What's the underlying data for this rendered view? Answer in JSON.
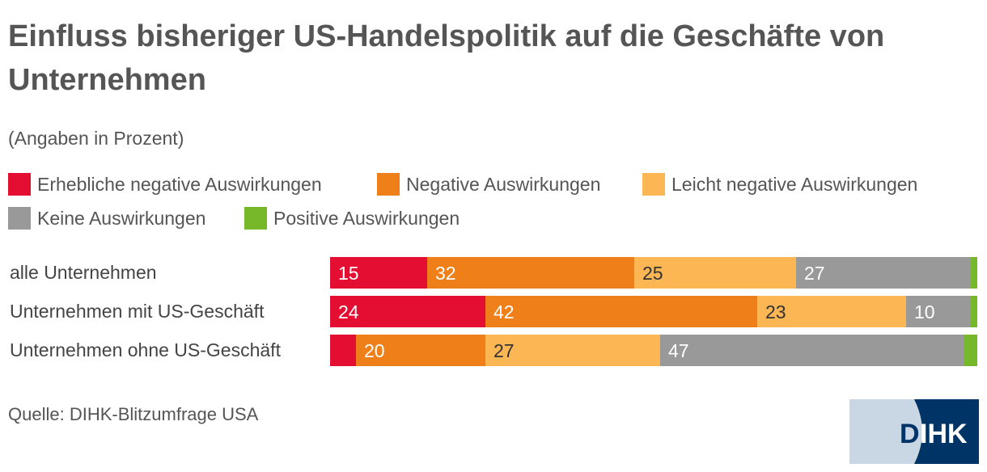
{
  "title": "Einfluss bisheriger US-Handelspolitik auf die Geschäfte von Unternehmen",
  "subtitle": "(Angaben in Prozent)",
  "source": "Quelle: DIHK-Blitzumfrage USA",
  "logo_text": "DIHK",
  "chart_data": {
    "type": "bar",
    "orientation": "horizontal-stacked",
    "title": "Einfluss bisheriger US-Handelspolitik auf die Geschäfte von Unternehmen",
    "subtitle": "(Angaben in Prozent)",
    "categories": [
      "alle Unternehmen",
      "Unternehmen mit US-Geschäft",
      "Unternehmen ohne US-Geschäft"
    ],
    "series": [
      {
        "name": "Erhebliche negative Auswirkungen",
        "color": "#e30e31",
        "values": [
          15,
          24,
          4
        ],
        "labels": [
          "15",
          "24",
          ""
        ]
      },
      {
        "name": "Negative Auswirkungen",
        "color": "#ef8019",
        "values": [
          32,
          42,
          20
        ],
        "labels": [
          "32",
          "42",
          "20"
        ]
      },
      {
        "name": "Leicht negative Auswirkungen",
        "color": "#fdb654",
        "values": [
          25,
          23,
          27
        ],
        "labels": [
          "25",
          "23",
          "27"
        ]
      },
      {
        "name": "Keine Auswirkungen",
        "color": "#999999",
        "values": [
          27,
          10,
          47
        ],
        "labels": [
          "27",
          "10",
          "47"
        ]
      },
      {
        "name": "Positive Auswirkungen",
        "color": "#76b82a",
        "values": [
          1,
          1,
          2
        ],
        "labels": [
          "",
          "",
          ""
        ]
      }
    ],
    "xlim": [
      0,
      100
    ],
    "legend": "top",
    "grid": false
  }
}
